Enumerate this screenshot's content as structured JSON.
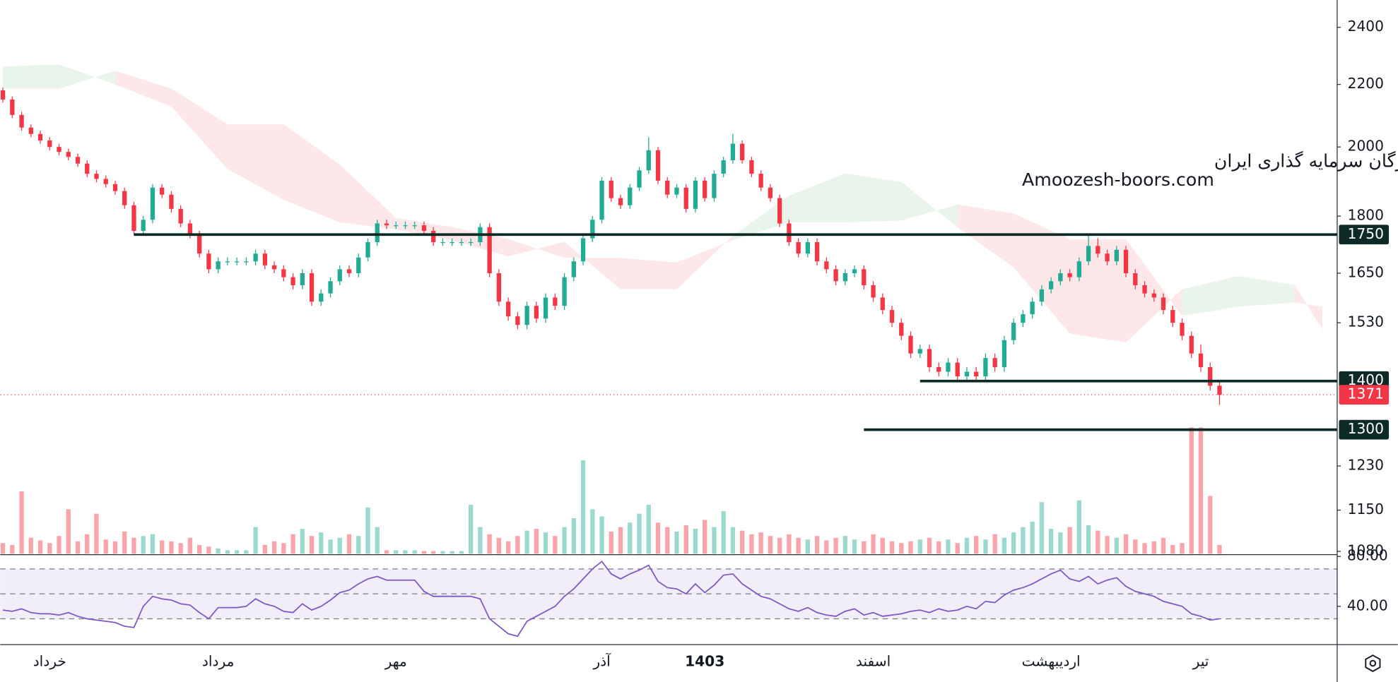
{
  "chart_data": {
    "type": "candlestick",
    "watermark": [
      "انجمن خبرگان سرمایه گذاری ایران",
      "Amoozesh-boors.com"
    ],
    "log_scale": true,
    "ylim": [
      1076,
      2502
    ],
    "yticks": [
      2400,
      2200,
      2000,
      1800,
      1650,
      1530,
      1230,
      1150,
      1080
    ],
    "up_color": "#22ab94",
    "down_color": "#f23645",
    "categories": [
      null,
      null,
      null,
      null,
      null,
      "خرداد",
      null,
      null,
      null,
      null,
      null,
      null,
      null,
      null,
      null,
      null,
      null,
      null,
      null,
      null,
      null,
      null,
      null,
      "مرداد",
      null,
      null,
      null,
      null,
      null,
      null,
      null,
      null,
      null,
      null,
      null,
      null,
      null,
      null,
      null,
      null,
      null,
      null,
      "مهر",
      null,
      null,
      null,
      null,
      null,
      null,
      null,
      null,
      null,
      null,
      null,
      null,
      null,
      null,
      null,
      null,
      null,
      null,
      null,
      null,
      null,
      "آذر",
      null,
      null,
      null,
      null,
      null,
      null,
      null,
      null,
      null,
      null,
      "1403",
      null,
      null,
      null,
      null,
      null,
      null,
      null,
      null,
      null,
      null,
      null,
      null,
      null,
      null,
      null,
      null,
      null,
      "اسفند",
      null,
      null,
      null,
      null,
      null,
      null,
      null,
      null,
      null,
      null,
      null,
      null,
      null,
      null,
      null,
      null,
      null,
      null,
      "اردیبهشت",
      null,
      null,
      null,
      null,
      null,
      null,
      null,
      null,
      null,
      null,
      null,
      null,
      null,
      null,
      null,
      "تیر",
      null,
      null
    ],
    "open": [
      2180,
      2150,
      2100,
      2060,
      2040,
      2020,
      2000,
      1985,
      1970,
      1950,
      1920,
      1905,
      1890,
      1870,
      1830,
      1760,
      1790,
      1880,
      1860,
      1820,
      1780,
      1750,
      1700,
      1660,
      1680,
      1680,
      1680,
      1680,
      1700,
      1670,
      1660,
      1640,
      1620,
      1650,
      1580,
      1600,
      1630,
      1660,
      1650,
      1690,
      1730,
      1780,
      1775,
      1775,
      1775,
      1775,
      1760,
      1730,
      1730,
      1730,
      1730,
      1730,
      1770,
      1650,
      1580,
      1545,
      1525,
      1570,
      1540,
      1590,
      1570,
      1640,
      1680,
      1740,
      1790,
      1900,
      1850,
      1830,
      1880,
      1930,
      1990,
      1900,
      1860,
      1880,
      1820,
      1900,
      1850,
      1920,
      1960,
      2010,
      1960,
      1920,
      1880,
      1850,
      1780,
      1730,
      1700,
      1730,
      1680,
      1660,
      1630,
      1650,
      1660,
      1620,
      1590,
      1560,
      1530,
      1500,
      1460,
      1470,
      1430,
      1420,
      1440,
      1410,
      1420,
      1410,
      1450,
      1430,
      1490,
      1530,
      1550,
      1580,
      1610,
      1630,
      1650,
      1640,
      1680,
      1720,
      1700,
      1680,
      1710,
      1650,
      1620,
      1600,
      1590,
      1560,
      1530,
      1500,
      1460,
      1430,
      1390
    ],
    "high": [
      2190,
      2160,
      2110,
      2070,
      2050,
      2030,
      2010,
      1995,
      1980,
      1960,
      1930,
      1915,
      1900,
      1880,
      1840,
      1800,
      1890,
      1890,
      1870,
      1830,
      1790,
      1760,
      1710,
      1690,
      1690,
      1690,
      1690,
      1710,
      1710,
      1680,
      1670,
      1650,
      1660,
      1660,
      1610,
      1640,
      1670,
      1670,
      1700,
      1740,
      1790,
      1790,
      1785,
      1785,
      1785,
      1785,
      1770,
      1740,
      1740,
      1740,
      1740,
      1780,
      1780,
      1660,
      1590,
      1555,
      1580,
      1580,
      1600,
      1600,
      1650,
      1690,
      1750,
      1800,
      1910,
      1910,
      1860,
      1890,
      1940,
      2030,
      2000,
      1910,
      1890,
      1890,
      1910,
      1910,
      1930,
      1970,
      2040,
      2020,
      1970,
      1930,
      1890,
      1860,
      1790,
      1740,
      1740,
      1740,
      1690,
      1670,
      1660,
      1670,
      1670,
      1630,
      1600,
      1570,
      1540,
      1510,
      1480,
      1480,
      1440,
      1450,
      1450,
      1430,
      1430,
      1460,
      1460,
      1500,
      1540,
      1560,
      1590,
      1620,
      1640,
      1660,
      1660,
      1690,
      1750,
      1740,
      1710,
      1720,
      1720,
      1660,
      1630,
      1610,
      1600,
      1570,
      1540,
      1510,
      1480,
      1440,
      1400
    ],
    "low": [
      2140,
      2090,
      2050,
      2030,
      2010,
      1990,
      1975,
      1960,
      1940,
      1910,
      1895,
      1880,
      1860,
      1820,
      1750,
      1750,
      1780,
      1850,
      1810,
      1770,
      1740,
      1690,
      1650,
      1650,
      1670,
      1670,
      1670,
      1670,
      1660,
      1650,
      1630,
      1610,
      1610,
      1570,
      1570,
      1590,
      1620,
      1640,
      1640,
      1680,
      1720,
      1765,
      1765,
      1765,
      1765,
      1750,
      1720,
      1720,
      1720,
      1720,
      1720,
      1720,
      1640,
      1570,
      1535,
      1515,
      1515,
      1530,
      1530,
      1560,
      1560,
      1630,
      1670,
      1730,
      1780,
      1840,
      1820,
      1820,
      1870,
      1920,
      1890,
      1850,
      1850,
      1810,
      1810,
      1840,
      1840,
      1910,
      1950,
      1950,
      1910,
      1870,
      1840,
      1770,
      1720,
      1690,
      1690,
      1670,
      1650,
      1620,
      1620,
      1640,
      1610,
      1580,
      1550,
      1520,
      1490,
      1450,
      1450,
      1420,
      1410,
      1410,
      1400,
      1400,
      1400,
      1400,
      1420,
      1420,
      1480,
      1520,
      1540,
      1570,
      1600,
      1620,
      1630,
      1630,
      1670,
      1690,
      1670,
      1670,
      1640,
      1610,
      1590,
      1580,
      1550,
      1520,
      1490,
      1450,
      1420,
      1380,
      1350
    ],
    "close": [
      2150,
      2100,
      2060,
      2040,
      2020,
      2000,
      1985,
      1970,
      1950,
      1920,
      1905,
      1890,
      1870,
      1830,
      1760,
      1790,
      1880,
      1860,
      1820,
      1780,
      1750,
      1700,
      1660,
      1680,
      1680,
      1680,
      1680,
      1700,
      1670,
      1660,
      1640,
      1620,
      1650,
      1580,
      1600,
      1630,
      1660,
      1650,
      1690,
      1730,
      1780,
      1775,
      1775,
      1775,
      1775,
      1760,
      1730,
      1730,
      1730,
      1730,
      1730,
      1770,
      1650,
      1580,
      1545,
      1525,
      1570,
      1540,
      1590,
      1570,
      1640,
      1680,
      1740,
      1790,
      1900,
      1850,
      1830,
      1880,
      1930,
      1990,
      1900,
      1860,
      1880,
      1820,
      1900,
      1850,
      1920,
      1960,
      2010,
      1960,
      1920,
      1880,
      1850,
      1780,
      1730,
      1700,
      1730,
      1680,
      1660,
      1630,
      1650,
      1660,
      1620,
      1590,
      1560,
      1530,
      1500,
      1460,
      1470,
      1430,
      1420,
      1440,
      1410,
      1420,
      1410,
      1450,
      1430,
      1490,
      1530,
      1550,
      1580,
      1610,
      1630,
      1650,
      1640,
      1680,
      1720,
      1700,
      1680,
      1710,
      1650,
      1620,
      1600,
      1590,
      1560,
      1530,
      1500,
      1460,
      1430,
      1390,
      1371
    ],
    "volume": [
      12,
      10,
      70,
      18,
      15,
      12,
      20,
      50,
      14,
      22,
      45,
      16,
      14,
      25,
      18,
      20,
      22,
      15,
      14,
      12,
      18,
      10,
      8,
      6,
      4,
      4,
      4,
      30,
      10,
      14,
      12,
      22,
      28,
      20,
      24,
      16,
      18,
      22,
      20,
      52,
      30,
      4,
      4,
      4,
      4,
      3,
      3,
      3,
      3,
      3,
      55,
      30,
      22,
      18,
      14,
      20,
      26,
      28,
      24,
      20,
      30,
      40,
      105,
      50,
      42,
      25,
      30,
      35,
      45,
      55,
      35,
      30,
      25,
      32,
      28,
      38,
      30,
      48,
      30,
      26,
      22,
      24,
      20,
      18,
      22,
      18,
      16,
      20,
      15,
      18,
      20,
      16,
      14,
      22,
      18,
      14,
      12,
      14,
      16,
      18,
      14,
      16,
      12,
      18,
      20,
      16,
      22,
      18,
      24,
      30,
      36,
      58,
      28,
      24,
      30,
      60,
      32,
      26,
      20,
      18,
      22,
      16,
      12,
      14,
      18,
      10,
      12,
      142,
      142,
      65,
      10
    ],
    "volume_lim": [
      0,
      150
    ],
    "cloud": {
      "index": [
        0,
        6,
        12,
        18,
        24,
        30,
        36,
        42,
        48,
        54,
        60,
        66,
        72,
        78,
        84,
        90,
        96,
        102,
        108,
        114,
        120,
        126,
        132,
        138,
        141
      ],
      "span_a": [
        2261,
        2268,
        2200,
        2127,
        1934,
        1845,
        1783,
        1764,
        1735,
        1693,
        1731,
        1610,
        1610,
        1747,
        1857,
        1921,
        1896,
        1770,
        1665,
        1505,
        1485,
        1610,
        1643,
        1621,
        1515
      ],
      "span_b": [
        2186,
        2186,
        2246,
        2186,
        2070,
        2070,
        1947,
        1795,
        1770,
        1738,
        1689,
        1689,
        1677,
        1735,
        1783,
        1783,
        1788,
        1832,
        1807,
        1738,
        1738,
        1546,
        1568,
        1578,
        1568
      ],
      "up_color": "#4caf50",
      "down_color": "#f23645"
    },
    "levels": [
      {
        "value": 1750,
        "from": 14
      },
      {
        "value": 1400,
        "from": 98
      },
      {
        "value": 1300,
        "from": 92
      }
    ],
    "level_color": "#0d2a26",
    "last_price": {
      "value": 1371,
      "color": "#f23645"
    },
    "rsi": {
      "values": [
        37,
        36,
        38,
        35,
        34,
        34,
        33,
        35,
        32,
        30,
        29,
        28,
        27,
        24,
        23,
        40,
        48,
        46,
        45,
        42,
        41,
        35,
        30,
        39,
        39,
        39,
        40,
        46,
        42,
        40,
        36,
        35,
        42,
        37,
        40,
        45,
        51,
        53,
        58,
        62,
        64,
        61,
        61,
        61,
        61,
        52,
        48,
        48,
        48,
        48,
        48,
        46,
        30,
        24,
        18,
        16,
        28,
        32,
        36,
        40,
        48,
        54,
        62,
        70,
        76,
        66,
        62,
        66,
        69,
        73,
        60,
        55,
        54,
        50,
        58,
        51,
        57,
        65,
        66,
        58,
        53,
        48,
        46,
        42,
        38,
        36,
        39,
        35,
        33,
        32,
        36,
        38,
        33,
        35,
        32,
        33,
        34,
        36,
        37,
        35,
        38,
        36,
        37,
        40,
        38,
        44,
        43,
        49,
        53,
        55,
        58,
        62,
        66,
        69,
        62,
        60,
        64,
        58,
        61,
        63,
        56,
        52,
        50,
        48,
        44,
        42,
        40,
        34,
        32,
        29,
        30
      ],
      "color": "#7e57c2",
      "ylim": [
        10,
        80
      ],
      "yticks": [
        {
          "value": 80,
          "label": "80.00"
        },
        {
          "value": 40,
          "label": "40.00"
        }
      ],
      "band": [
        30,
        70
      ],
      "mid": 50
    }
  }
}
